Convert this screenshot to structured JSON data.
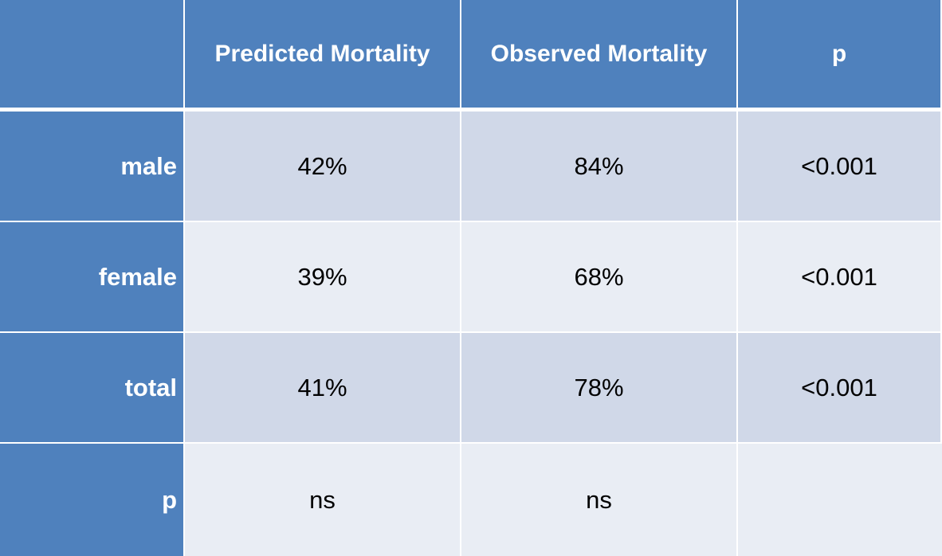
{
  "chart_data": {
    "type": "table",
    "columns": [
      "",
      "Predicted Mortality",
      "Observed Mortality",
      "p"
    ],
    "rows": [
      {
        "label": "male",
        "cells": [
          "42%",
          "84%",
          "<0.001"
        ]
      },
      {
        "label": "female",
        "cells": [
          "39%",
          "68%",
          "<0.001"
        ]
      },
      {
        "label": "total",
        "cells": [
          "41%",
          "78%",
          "<0.001"
        ]
      },
      {
        "label": "p",
        "cells": [
          "ns",
          "ns",
          ""
        ]
      }
    ],
    "colors": {
      "header": "#4f81bd",
      "band_dark": "#d0d8e8",
      "band_light": "#e9edf4",
      "header_text": "#ffffff"
    }
  }
}
